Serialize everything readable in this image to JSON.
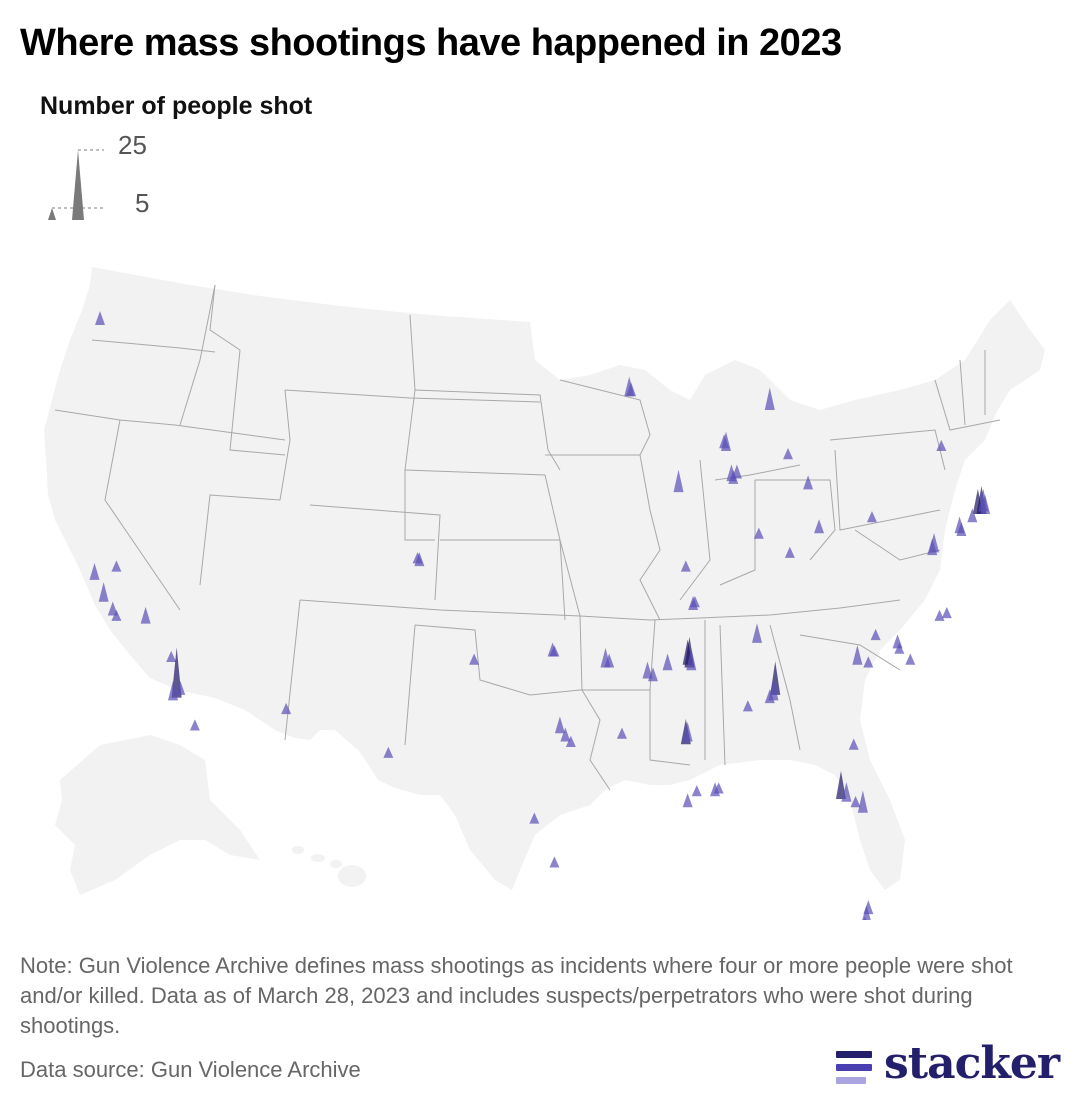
{
  "title": "Where mass shootings have happened in 2023",
  "legend": {
    "title": "Number of people shot",
    "values": [
      "25",
      "5"
    ]
  },
  "note": "Note: Gun Violence Archive defines mass shootings as incidents where four or more people were shot and/or killed. Data as of March 28, 2023 and includes suspects/perpetrators who were shot during shootings.",
  "source": "Data source: Gun Violence Archive",
  "logo": {
    "text": "stacker",
    "icon": "stacker-bars-icon"
  },
  "colors": {
    "spike": "#5a4fb5",
    "spike_dark": "#1c1664",
    "land": "#f2f2f2",
    "state_border": "#a8a8a8",
    "legend_spike": "#7a7a7a",
    "brand": "#231f6b"
  },
  "map_data": {
    "type": "spike-map",
    "encoding": "spike height = number of people shot",
    "incidents": [
      {
        "lon": -122.3,
        "lat": 47.6,
        "shot": 5
      },
      {
        "lon": -122.6,
        "lat": 38.3,
        "shot": 6
      },
      {
        "lon": -122.1,
        "lat": 37.5,
        "shot": 7
      },
      {
        "lon": -121.4,
        "lat": 38.6,
        "shot": 4
      },
      {
        "lon": -121.6,
        "lat": 37.0,
        "shot": 5
      },
      {
        "lon": -121.4,
        "lat": 36.8,
        "shot": 4
      },
      {
        "lon": -119.8,
        "lat": 36.7,
        "shot": 6
      },
      {
        "lon": -118.4,
        "lat": 35.3,
        "shot": 4
      },
      {
        "lon": -118.1,
        "lat": 34.0,
        "shot": 18
      },
      {
        "lon": -118.3,
        "lat": 33.9,
        "shot": 7
      },
      {
        "lon": -117.9,
        "lat": 34.1,
        "shot": 5
      },
      {
        "lon": -117.1,
        "lat": 32.8,
        "shot": 4
      },
      {
        "lon": -112.1,
        "lat": 33.4,
        "shot": 4
      },
      {
        "lon": -104.8,
        "lat": 38.8,
        "shot": 5
      },
      {
        "lon": -104.9,
        "lat": 38.9,
        "shot": 4
      },
      {
        "lon": -106.5,
        "lat": 31.8,
        "shot": 4
      },
      {
        "lon": -101.8,
        "lat": 35.2,
        "shot": 4
      },
      {
        "lon": -97.5,
        "lat": 35.5,
        "shot": 5
      },
      {
        "lon": -97.4,
        "lat": 35.5,
        "shot": 4
      },
      {
        "lon": -94.6,
        "lat": 35.1,
        "shot": 7
      },
      {
        "lon": -94.4,
        "lat": 35.1,
        "shot": 5
      },
      {
        "lon": -98.5,
        "lat": 29.4,
        "shot": 4
      },
      {
        "lon": -97.1,
        "lat": 32.7,
        "shot": 6
      },
      {
        "lon": -96.8,
        "lat": 32.4,
        "shot": 5
      },
      {
        "lon": -96.5,
        "lat": 32.2,
        "shot": 4
      },
      {
        "lon": -97.4,
        "lat": 27.8,
        "shot": 4
      },
      {
        "lon": -92.3,
        "lat": 34.7,
        "shot": 6
      },
      {
        "lon": -92.0,
        "lat": 34.6,
        "shot": 5
      },
      {
        "lon": -93.7,
        "lat": 32.5,
        "shot": 4
      },
      {
        "lon": -91.2,
        "lat": 35.0,
        "shot": 6
      },
      {
        "lon": -90.0,
        "lat": 35.1,
        "shot": 11
      },
      {
        "lon": -90.1,
        "lat": 35.2,
        "shot": 9
      },
      {
        "lon": -89.9,
        "lat": 35.0,
        "shot": 8
      },
      {
        "lon": -90.2,
        "lat": 32.3,
        "shot": 9
      },
      {
        "lon": -90.1,
        "lat": 32.4,
        "shot": 7
      },
      {
        "lon": -90.1,
        "lat": 30.0,
        "shot": 5
      },
      {
        "lon": -89.6,
        "lat": 30.4,
        "shot": 4
      },
      {
        "lon": -88.6,
        "lat": 30.4,
        "shot": 5
      },
      {
        "lon": -88.4,
        "lat": 30.5,
        "shot": 4
      },
      {
        "lon": -86.8,
        "lat": 33.5,
        "shot": 4
      },
      {
        "lon": -85.3,
        "lat": 34.1,
        "shot": 12
      },
      {
        "lon": -85.4,
        "lat": 33.9,
        "shot": 8
      },
      {
        "lon": -85.6,
        "lat": 33.8,
        "shot": 5
      },
      {
        "lon": -86.3,
        "lat": 36.0,
        "shot": 7
      },
      {
        "lon": -90.2,
        "lat": 38.6,
        "shot": 4
      },
      {
        "lon": -89.8,
        "lat": 37.2,
        "shot": 5
      },
      {
        "lon": -89.7,
        "lat": 37.3,
        "shot": 4
      },
      {
        "lon": -90.6,
        "lat": 41.5,
        "shot": 8
      },
      {
        "lon": -87.7,
        "lat": 41.9,
        "shot": 6
      },
      {
        "lon": -87.6,
        "lat": 41.8,
        "shot": 5
      },
      {
        "lon": -87.4,
        "lat": 42.0,
        "shot": 5
      },
      {
        "lon": -88.0,
        "lat": 43.0,
        "shot": 7
      },
      {
        "lon": -88.1,
        "lat": 43.1,
        "shot": 5
      },
      {
        "lon": -93.3,
        "lat": 45.0,
        "shot": 7
      },
      {
        "lon": -93.2,
        "lat": 45.0,
        "shot": 5
      },
      {
        "lon": -86.2,
        "lat": 39.8,
        "shot": 4
      },
      {
        "lon": -85.6,
        "lat": 44.5,
        "shot": 8
      },
      {
        "lon": -84.6,
        "lat": 42.7,
        "shot": 4
      },
      {
        "lon": -83.5,
        "lat": 41.6,
        "shot": 5
      },
      {
        "lon": -84.5,
        "lat": 39.1,
        "shot": 4
      },
      {
        "lon": -82.9,
        "lat": 40.0,
        "shot": 5
      },
      {
        "lon": -80.0,
        "lat": 40.4,
        "shot": 4
      },
      {
        "lon": -76.2,
        "lat": 43.0,
        "shot": 4
      },
      {
        "lon": -75.2,
        "lat": 40.0,
        "shot": 6
      },
      {
        "lon": -75.1,
        "lat": 39.9,
        "shot": 5
      },
      {
        "lon": -76.6,
        "lat": 39.3,
        "shot": 7
      },
      {
        "lon": -76.7,
        "lat": 39.2,
        "shot": 6
      },
      {
        "lon": -74.2,
        "lat": 40.7,
        "shot": 9
      },
      {
        "lon": -74.0,
        "lat": 40.7,
        "shot": 10
      },
      {
        "lon": -73.9,
        "lat": 40.8,
        "shot": 8
      },
      {
        "lon": -73.8,
        "lat": 40.7,
        "shot": 7
      },
      {
        "lon": -74.5,
        "lat": 40.4,
        "shot": 5
      },
      {
        "lon": -80.8,
        "lat": 35.2,
        "shot": 7
      },
      {
        "lon": -80.2,
        "lat": 35.1,
        "shot": 4
      },
      {
        "lon": -79.8,
        "lat": 36.1,
        "shot": 4
      },
      {
        "lon": -78.6,
        "lat": 35.8,
        "shot": 5
      },
      {
        "lon": -78.5,
        "lat": 35.6,
        "shot": 4
      },
      {
        "lon": -77.9,
        "lat": 35.2,
        "shot": 4
      },
      {
        "lon": -76.3,
        "lat": 36.8,
        "shot": 4
      },
      {
        "lon": -75.9,
        "lat": 36.9,
        "shot": 4
      },
      {
        "lon": -81.0,
        "lat": 32.1,
        "shot": 4
      },
      {
        "lon": -81.7,
        "lat": 30.3,
        "shot": 10
      },
      {
        "lon": -81.4,
        "lat": 30.2,
        "shot": 7
      },
      {
        "lon": -80.9,
        "lat": 30.0,
        "shot": 4
      },
      {
        "lon": -80.5,
        "lat": 29.8,
        "shot": 8
      },
      {
        "lon": -80.2,
        "lat": 26.1,
        "shot": 5
      },
      {
        "lon": -80.3,
        "lat": 25.8,
        "shot": 6
      },
      {
        "lon": -80.4,
        "lat": 25.6,
        "shot": 4
      }
    ]
  }
}
